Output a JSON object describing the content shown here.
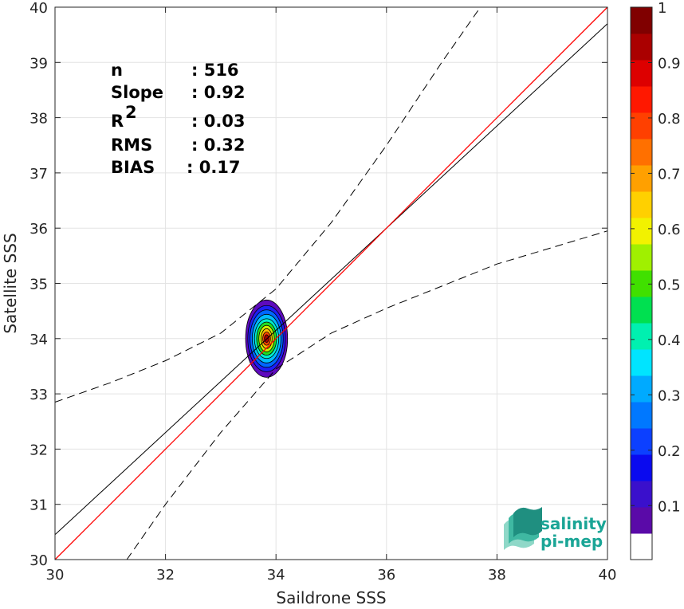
{
  "chart_data": {
    "type": "scatter",
    "xlabel": "Saildrone SSS",
    "ylabel": "Satellite SSS",
    "xlim": [
      30,
      40
    ],
    "ylim": [
      30,
      40
    ],
    "x_ticks": [
      "30",
      "32",
      "34",
      "36",
      "38",
      "40"
    ],
    "y_ticks": [
      "30",
      "31",
      "32",
      "33",
      "34",
      "35",
      "36",
      "37",
      "38",
      "39",
      "40"
    ],
    "grid": true,
    "stats": [
      {
        "label": "n",
        "value": ": 516"
      },
      {
        "label": "Slope",
        "value": ": 0.92"
      },
      {
        "label": "R",
        "sup": "2",
        "value": ": 0.03"
      },
      {
        "label": "RMS",
        "value": ": 0.32"
      },
      {
        "label": "BIAS",
        "value": ": 0.17"
      }
    ],
    "reference_line": {
      "name": "1:1",
      "color": "#ff0000",
      "points": [
        [
          30,
          30
        ],
        [
          40,
          40
        ]
      ]
    },
    "fit_line": {
      "color": "#000000",
      "points": [
        [
          30,
          30.45
        ],
        [
          40,
          39.7
        ]
      ]
    },
    "confidence_upper": [
      [
        30,
        32.85
      ],
      [
        31,
        33.2
      ],
      [
        32,
        33.6
      ],
      [
        33,
        34.1
      ],
      [
        34,
        34.9
      ],
      [
        35,
        36.1
      ],
      [
        36,
        37.5
      ],
      [
        37,
        39.0
      ],
      [
        37.7,
        40
      ]
    ],
    "confidence_lower": [
      [
        31.3,
        30
      ],
      [
        32,
        31.0
      ],
      [
        33,
        32.3
      ],
      [
        34,
        33.45
      ],
      [
        35,
        34.1
      ],
      [
        36,
        34.55
      ],
      [
        37,
        34.95
      ],
      [
        38,
        35.35
      ],
      [
        39,
        35.65
      ],
      [
        40,
        35.95
      ]
    ],
    "density": {
      "center": [
        33.83,
        34.0
      ],
      "levels": [
        {
          "value": 0.05,
          "rx": 0.38,
          "ry": 0.7,
          "color": "#5e0abd"
        },
        {
          "value": 0.15,
          "rx": 0.34,
          "ry": 0.6,
          "color": "#1e1ef5"
        },
        {
          "value": 0.25,
          "rx": 0.3,
          "ry": 0.52,
          "color": "#0066ff"
        },
        {
          "value": 0.35,
          "rx": 0.26,
          "ry": 0.44,
          "color": "#00bbff"
        },
        {
          "value": 0.45,
          "rx": 0.22,
          "ry": 0.36,
          "color": "#00eecc"
        },
        {
          "value": 0.55,
          "rx": 0.18,
          "ry": 0.3,
          "color": "#22dd22"
        },
        {
          "value": 0.65,
          "rx": 0.14,
          "ry": 0.24,
          "color": "#ccee00"
        },
        {
          "value": 0.75,
          "rx": 0.1,
          "ry": 0.18,
          "color": "#ffbb00"
        },
        {
          "value": 0.85,
          "rx": 0.07,
          "ry": 0.12,
          "color": "#ff4400"
        },
        {
          "value": 0.95,
          "rx": 0.04,
          "ry": 0.07,
          "color": "#aa0000"
        }
      ]
    },
    "colorbar": {
      "ticks": [
        "0.1",
        "0.2",
        "0.3",
        "0.4",
        "0.5",
        "0.6",
        "0.7",
        "0.8",
        "0.9",
        "1"
      ],
      "bottom_level": 0.05,
      "colors": [
        "#ffffff",
        "#5a0aa8",
        "#3a10cc",
        "#0a0aef",
        "#0c40ff",
        "#0078ff",
        "#00aaff",
        "#00e4ff",
        "#00f0b0",
        "#00e050",
        "#40e000",
        "#a0f000",
        "#f2f200",
        "#ffd000",
        "#ffa000",
        "#ff7000",
        "#ff4000",
        "#ff1800",
        "#dd0000",
        "#aa0000",
        "#800000"
      ]
    }
  },
  "logo": {
    "line1": "salinity",
    "line2": "pi-mep"
  }
}
